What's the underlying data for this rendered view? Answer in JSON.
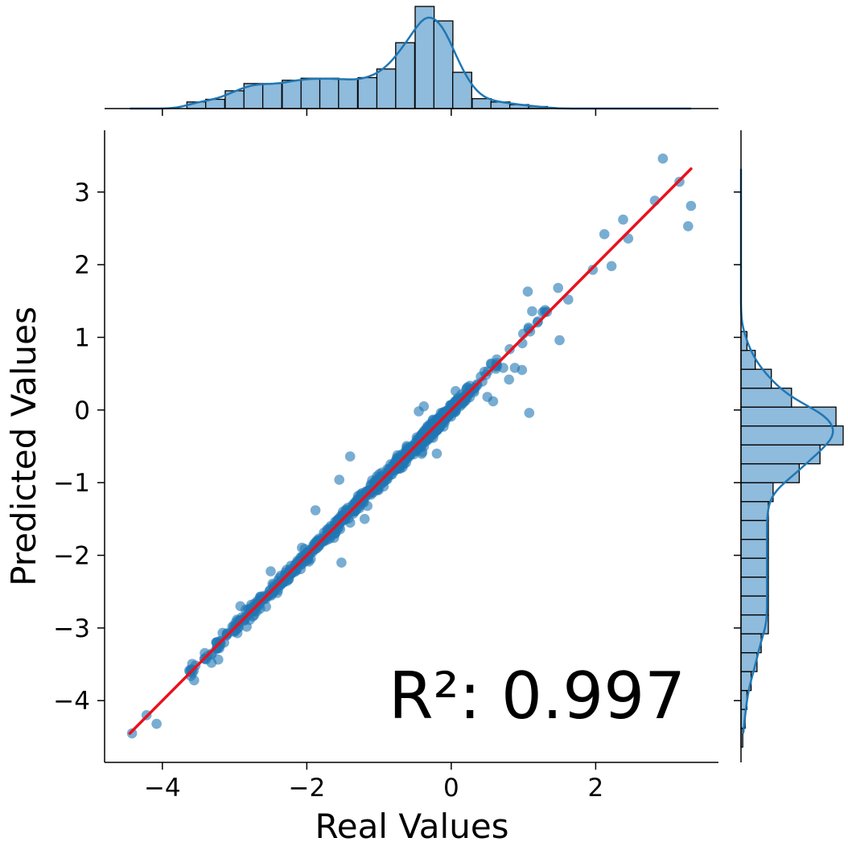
{
  "chart_data": {
    "type": "scatter",
    "title": "",
    "xlabel": "Real Values",
    "ylabel": "Predicted Values",
    "annotation": "R²: 0.997",
    "xlim": [
      -4.8,
      3.7
    ],
    "ylim": [
      -4.85,
      3.85
    ],
    "x_ticks": [
      -4,
      -2,
      0,
      2
    ],
    "x_tick_labels": [
      "−4",
      "−2",
      "0",
      "2"
    ],
    "y_ticks": [
      -4,
      -3,
      -2,
      -1,
      0,
      1,
      2,
      3
    ],
    "y_tick_labels": [
      "−4",
      "−3",
      "−2",
      "−1",
      "0",
      "1",
      "2",
      "3"
    ],
    "fit_line": {
      "x0": -4.45,
      "y0": -4.45,
      "x1": 3.32,
      "y1": 3.32
    },
    "colors": {
      "points": "#1f77b4",
      "fit_line": "#e8121e",
      "hist_fill": "#8fbbdc",
      "kde": "#1f77b4"
    },
    "outliers": [
      {
        "x": 2.93,
        "y": 3.46
      },
      {
        "x": 3.32,
        "y": 2.81
      },
      {
        "x": 3.28,
        "y": 2.53
      },
      {
        "x": 3.16,
        "y": 3.14
      },
      {
        "x": 2.82,
        "y": 2.88
      },
      {
        "x": 2.38,
        "y": 2.62
      },
      {
        "x": 2.45,
        "y": 2.36
      },
      {
        "x": 2.12,
        "y": 2.42
      },
      {
        "x": 2.22,
        "y": 1.98
      },
      {
        "x": 1.96,
        "y": 1.93
      },
      {
        "x": 1.62,
        "y": 1.52
      },
      {
        "x": 1.48,
        "y": 1.68
      },
      {
        "x": 1.06,
        "y": 1.63
      },
      {
        "x": 1.5,
        "y": 0.96
      },
      {
        "x": 1.2,
        "y": 1.22
      },
      {
        "x": 0.8,
        "y": 0.42
      },
      {
        "x": 0.58,
        "y": 0.12
      },
      {
        "x": 0.98,
        "y": 0.55
      },
      {
        "x": 1.12,
        "y": 1.36
      },
      {
        "x": 1.08,
        "y": -0.04
      },
      {
        "x": 0.72,
        "y": 0.58
      },
      {
        "x": 0.88,
        "y": 0.58
      },
      {
        "x": -1.4,
        "y": -0.64
      },
      {
        "x": -1.55,
        "y": -0.96
      },
      {
        "x": -1.88,
        "y": -1.38
      },
      {
        "x": -1.4,
        "y": -1.55
      },
      {
        "x": -1.2,
        "y": -1.5
      },
      {
        "x": -1.52,
        "y": -2.1
      },
      {
        "x": -1.16,
        "y": -1.32
      },
      {
        "x": -0.9,
        "y": -0.96
      },
      {
        "x": -0.2,
        "y": -0.6
      },
      {
        "x": -0.4,
        "y": -0.58
      },
      {
        "x": -0.38,
        "y": 0.05
      },
      {
        "x": -0.45,
        "y": -0.02
      },
      {
        "x": 0.06,
        "y": 0.26
      },
      {
        "x": 0.5,
        "y": 0.18
      },
      {
        "x": 0.36,
        "y": 0.34
      },
      {
        "x": -2.92,
        "y": -2.7
      },
      {
        "x": -2.5,
        "y": -2.22
      },
      {
        "x": -4.08,
        "y": -4.32
      },
      {
        "x": -4.42,
        "y": -4.45
      },
      {
        "x": -4.22,
        "y": -4.2
      },
      {
        "x": -3.56,
        "y": -3.72
      },
      {
        "x": -3.32,
        "y": -3.48
      }
    ],
    "hist_x": {
      "bins": [
        -3.66,
        -3.4,
        -3.13,
        -2.87,
        -2.61,
        -2.34,
        -2.08,
        -1.82,
        -1.56,
        -1.29,
        -1.03,
        -0.77,
        -0.5,
        -0.24,
        0.02,
        0.29,
        0.55,
        0.81,
        1.07
      ],
      "bin_width": 0.263,
      "counts": [
        10,
        14,
        27,
        38,
        38,
        43,
        46,
        46,
        45,
        47,
        60,
        100,
        155,
        133,
        55,
        15,
        10,
        6,
        3
      ]
    },
    "hist_y": {
      "bins": [
        -4.64,
        -4.38,
        -4.12,
        -3.86,
        -3.6,
        -3.34,
        -3.08,
        -2.82,
        -2.56,
        -2.3,
        -2.04,
        -1.78,
        -1.52,
        -1.26,
        -1.0,
        -0.74,
        -0.48,
        -0.22,
        0.04,
        0.3,
        0.56,
        0.82
      ],
      "bin_width": 0.26,
      "counts": [
        3,
        7,
        10,
        17,
        27,
        34,
        46,
        46,
        46,
        46,
        46,
        46,
        46,
        54,
        98,
        133,
        172,
        160,
        85,
        51,
        24,
        10
      ]
    }
  }
}
